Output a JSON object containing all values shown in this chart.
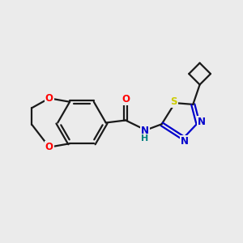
{
  "background_color": "#ebebeb",
  "bond_color": "#1a1a1a",
  "atom_colors": {
    "O": "#ff0000",
    "N": "#0000cc",
    "S": "#cccc00",
    "H": "#008080",
    "C": "#1a1a1a"
  },
  "figsize": [
    3.0,
    3.0
  ],
  "dpi": 100
}
